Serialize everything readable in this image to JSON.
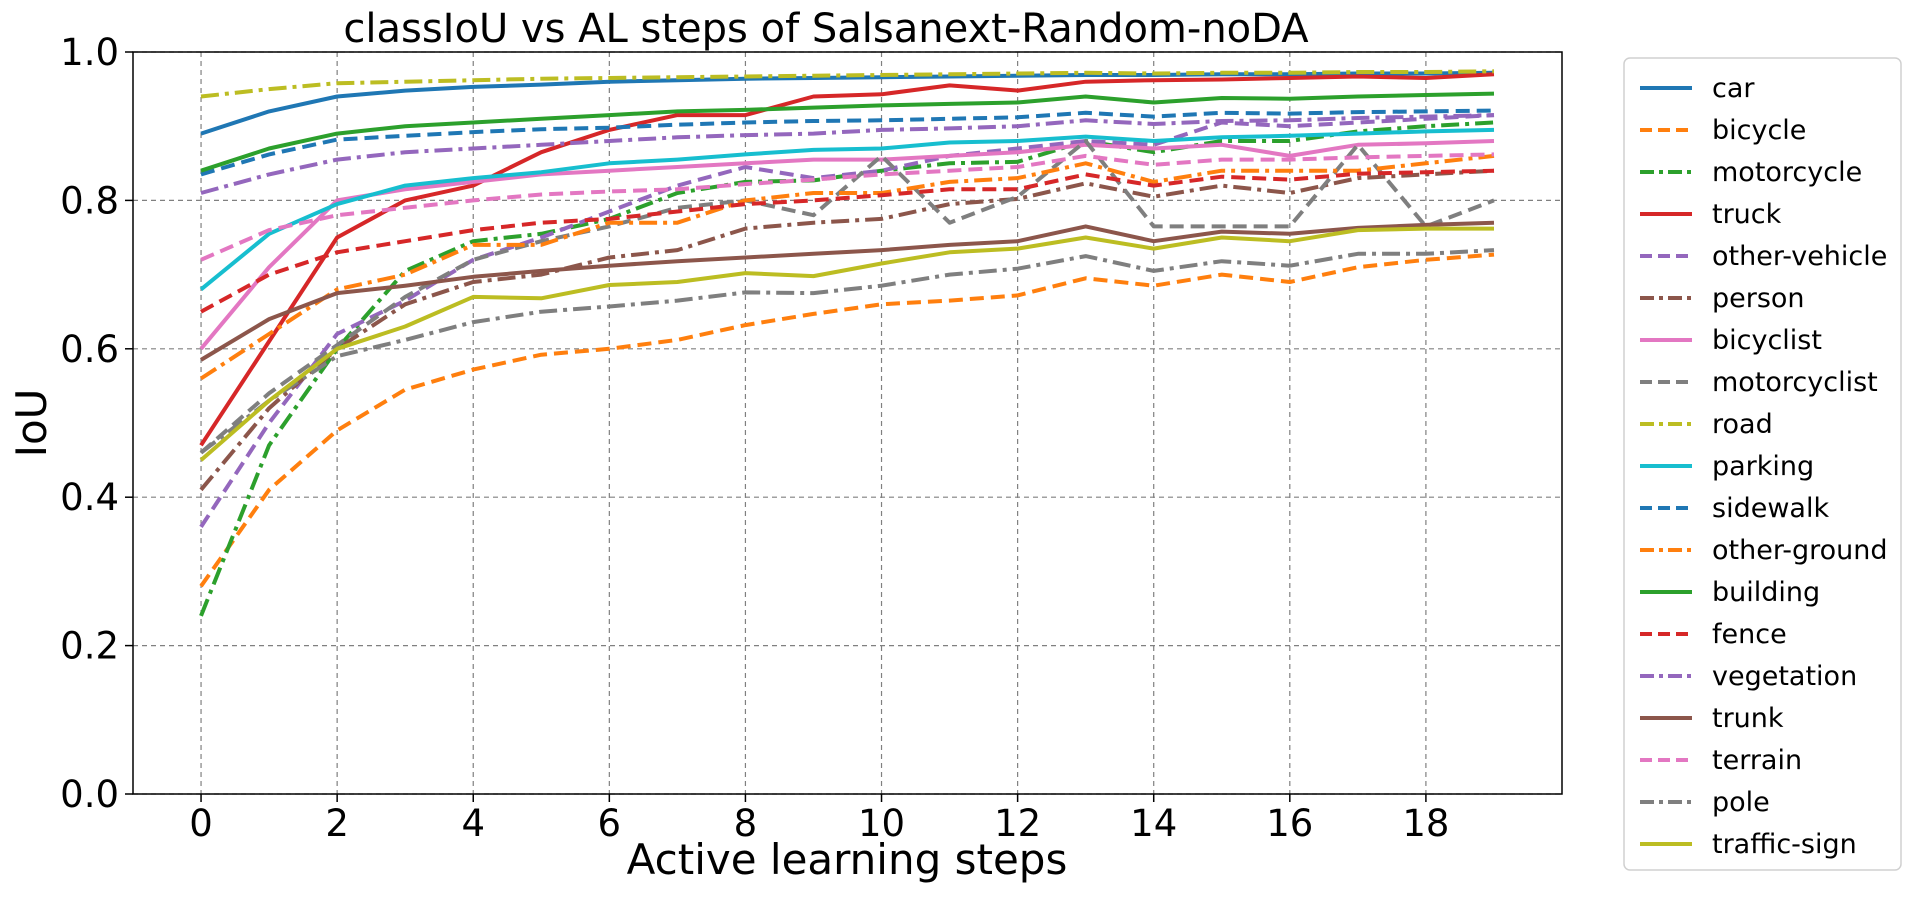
{
  "chart_data": {
    "type": "line",
    "title": "classIoU vs AL steps of Salsanext-Random-noDA",
    "xlabel": "Active learning steps",
    "ylabel": "IoU",
    "xlim": [
      -1,
      20
    ],
    "ylim": [
      0.0,
      1.0
    ],
    "grid": true,
    "legend_position": "outside-right",
    "x_ticks": [
      0,
      2,
      4,
      6,
      8,
      10,
      12,
      14,
      16,
      18
    ],
    "x_tick_labels": [
      "0",
      "2",
      "4",
      "6",
      "8",
      "10",
      "12",
      "14",
      "16",
      "18"
    ],
    "y_ticks": [
      0.0,
      0.2,
      0.4,
      0.6,
      0.8,
      1.0
    ],
    "y_tick_labels": [
      "0.0",
      "0.2",
      "0.4",
      "0.6",
      "0.8",
      "1.0"
    ],
    "x": [
      0,
      1,
      2,
      3,
      4,
      5,
      6,
      7,
      8,
      9,
      10,
      11,
      12,
      13,
      14,
      15,
      16,
      17,
      18,
      19
    ],
    "series": [
      {
        "name": "car",
        "color": "#1f77b4",
        "style": "solid",
        "values": [
          0.89,
          0.92,
          0.94,
          0.948,
          0.953,
          0.956,
          0.96,
          0.962,
          0.964,
          0.965,
          0.966,
          0.967,
          0.968,
          0.969,
          0.969,
          0.97,
          0.97,
          0.971,
          0.971,
          0.972
        ]
      },
      {
        "name": "bicycle",
        "color": "#ff7f0e",
        "style": "dashed",
        "values": [
          0.28,
          0.41,
          0.49,
          0.545,
          0.572,
          0.592,
          0.6,
          0.612,
          0.632,
          0.647,
          0.66,
          0.665,
          0.672,
          0.695,
          0.685,
          0.7,
          0.69,
          0.71,
          0.72,
          0.727
        ]
      },
      {
        "name": "motorcycle",
        "color": "#2ca02c",
        "style": "dashdot",
        "values": [
          0.24,
          0.47,
          0.6,
          0.705,
          0.745,
          0.755,
          0.775,
          0.81,
          0.825,
          0.827,
          0.84,
          0.85,
          0.852,
          0.88,
          0.865,
          0.88,
          0.88,
          0.893,
          0.9,
          0.905
        ]
      },
      {
        "name": "truck",
        "color": "#d62728",
        "style": "solid",
        "values": [
          0.47,
          0.61,
          0.75,
          0.8,
          0.82,
          0.865,
          0.895,
          0.915,
          0.915,
          0.94,
          0.943,
          0.955,
          0.948,
          0.96,
          0.962,
          0.963,
          0.965,
          0.967,
          0.965,
          0.97
        ]
      },
      {
        "name": "other-vehicle",
        "color": "#9467bd",
        "style": "dashed",
        "values": [
          0.36,
          0.5,
          0.62,
          0.665,
          0.72,
          0.75,
          0.785,
          0.82,
          0.845,
          0.83,
          0.84,
          0.86,
          0.87,
          0.88,
          0.875,
          0.905,
          0.9,
          0.905,
          0.91,
          0.915
        ]
      },
      {
        "name": "person",
        "color": "#8c564b",
        "style": "dashdot",
        "values": [
          0.41,
          0.52,
          0.6,
          0.66,
          0.69,
          0.7,
          0.723,
          0.733,
          0.762,
          0.77,
          0.775,
          0.795,
          0.802,
          0.823,
          0.805,
          0.82,
          0.81,
          0.83,
          0.835,
          0.84
        ]
      },
      {
        "name": "bicyclist",
        "color": "#e377c2",
        "style": "solid",
        "values": [
          0.6,
          0.71,
          0.8,
          0.815,
          0.825,
          0.835,
          0.84,
          0.845,
          0.85,
          0.855,
          0.855,
          0.86,
          0.865,
          0.875,
          0.87,
          0.875,
          0.86,
          0.875,
          0.877,
          0.88
        ]
      },
      {
        "name": "motorcyclist",
        "color": "#7f7f7f",
        "style": "dashed",
        "values": [
          0.46,
          0.54,
          0.605,
          0.67,
          0.72,
          0.745,
          0.765,
          0.79,
          0.8,
          0.78,
          0.86,
          0.77,
          0.805,
          0.88,
          0.765,
          0.765,
          0.765,
          0.875,
          0.765,
          0.8
        ]
      },
      {
        "name": "road",
        "color": "#bcbd22",
        "style": "dashdot",
        "values": [
          0.94,
          0.95,
          0.958,
          0.96,
          0.962,
          0.964,
          0.965,
          0.966,
          0.967,
          0.968,
          0.969,
          0.97,
          0.971,
          0.972,
          0.971,
          0.972,
          0.972,
          0.973,
          0.973,
          0.974
        ]
      },
      {
        "name": "parking",
        "color": "#17becf",
        "style": "solid",
        "values": [
          0.68,
          0.755,
          0.795,
          0.82,
          0.83,
          0.838,
          0.85,
          0.855,
          0.862,
          0.868,
          0.87,
          0.878,
          0.88,
          0.886,
          0.88,
          0.885,
          0.887,
          0.89,
          0.893,
          0.895
        ]
      },
      {
        "name": "sidewalk",
        "color": "#1f77b4",
        "style": "dashed",
        "values": [
          0.835,
          0.862,
          0.882,
          0.887,
          0.892,
          0.896,
          0.898,
          0.902,
          0.905,
          0.907,
          0.908,
          0.91,
          0.912,
          0.918,
          0.913,
          0.918,
          0.917,
          0.919,
          0.92,
          0.921
        ]
      },
      {
        "name": "other-ground",
        "color": "#ff7f0e",
        "style": "dashdot",
        "values": [
          0.56,
          0.62,
          0.68,
          0.7,
          0.74,
          0.74,
          0.77,
          0.77,
          0.8,
          0.81,
          0.81,
          0.825,
          0.83,
          0.85,
          0.825,
          0.84,
          0.84,
          0.84,
          0.85,
          0.86
        ]
      },
      {
        "name": "building",
        "color": "#2ca02c",
        "style": "solid",
        "values": [
          0.84,
          0.87,
          0.89,
          0.9,
          0.905,
          0.91,
          0.915,
          0.92,
          0.922,
          0.925,
          0.928,
          0.93,
          0.932,
          0.94,
          0.932,
          0.938,
          0.937,
          0.94,
          0.942,
          0.944
        ]
      },
      {
        "name": "fence",
        "color": "#d62728",
        "style": "dashed",
        "values": [
          0.65,
          0.7,
          0.73,
          0.745,
          0.76,
          0.77,
          0.775,
          0.785,
          0.795,
          0.8,
          0.807,
          0.815,
          0.815,
          0.835,
          0.82,
          0.832,
          0.828,
          0.836,
          0.838,
          0.84
        ]
      },
      {
        "name": "vegetation",
        "color": "#9467bd",
        "style": "dashdot",
        "values": [
          0.81,
          0.835,
          0.855,
          0.865,
          0.87,
          0.875,
          0.88,
          0.885,
          0.888,
          0.89,
          0.895,
          0.897,
          0.9,
          0.908,
          0.903,
          0.907,
          0.908,
          0.911,
          0.913,
          0.915
        ]
      },
      {
        "name": "trunk",
        "color": "#8c564b",
        "style": "solid",
        "values": [
          0.585,
          0.64,
          0.675,
          0.685,
          0.697,
          0.705,
          0.712,
          0.718,
          0.723,
          0.728,
          0.733,
          0.74,
          0.745,
          0.765,
          0.745,
          0.758,
          0.755,
          0.763,
          0.767,
          0.77
        ]
      },
      {
        "name": "terrain",
        "color": "#e377c2",
        "style": "dashed",
        "values": [
          0.72,
          0.76,
          0.78,
          0.79,
          0.8,
          0.808,
          0.812,
          0.815,
          0.822,
          0.828,
          0.835,
          0.84,
          0.845,
          0.86,
          0.848,
          0.855,
          0.855,
          0.858,
          0.86,
          0.862
        ]
      },
      {
        "name": "pole",
        "color": "#7f7f7f",
        "style": "dashdot",
        "values": [
          0.46,
          0.53,
          0.59,
          0.612,
          0.636,
          0.65,
          0.657,
          0.665,
          0.676,
          0.675,
          0.685,
          0.7,
          0.708,
          0.725,
          0.705,
          0.718,
          0.712,
          0.728,
          0.728,
          0.733
        ]
      },
      {
        "name": "traffic-sign",
        "color": "#bcbd22",
        "style": "solid",
        "values": [
          0.45,
          0.53,
          0.6,
          0.63,
          0.67,
          0.668,
          0.686,
          0.69,
          0.702,
          0.698,
          0.715,
          0.73,
          0.735,
          0.75,
          0.735,
          0.75,
          0.745,
          0.76,
          0.762,
          0.762
        ]
      }
    ]
  }
}
